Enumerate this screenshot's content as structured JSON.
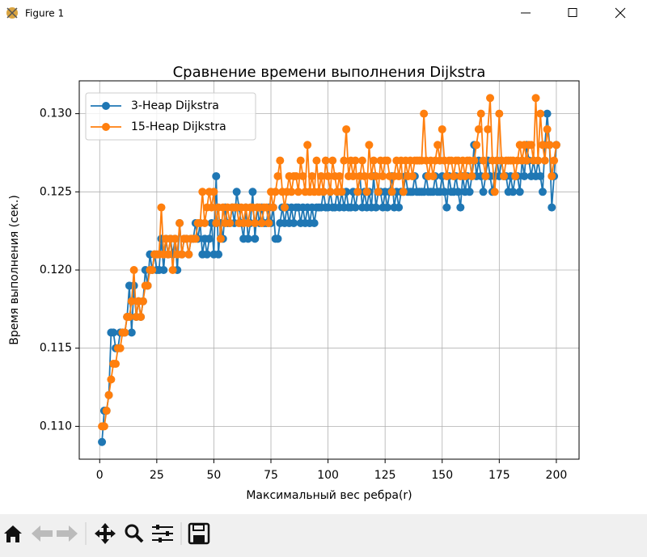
{
  "window": {
    "title": "Figure 1"
  },
  "chart_data": {
    "type": "line",
    "title": "Сравнение времени выполнения Dijkstra",
    "xlabel": "Максимальный вес ребра(r)",
    "ylabel": "Время выполнения (сек.)",
    "x": [
      1,
      2,
      3,
      4,
      5,
      6,
      7,
      8,
      9,
      10,
      11,
      12,
      13,
      14,
      15,
      16,
      17,
      18,
      19,
      20,
      21,
      22,
      23,
      24,
      25,
      26,
      27,
      28,
      29,
      30,
      31,
      32,
      33,
      34,
      35,
      36,
      37,
      38,
      39,
      40,
      41,
      42,
      43,
      44,
      45,
      46,
      47,
      48,
      49,
      50,
      51,
      52,
      53,
      54,
      55,
      56,
      57,
      58,
      59,
      60,
      61,
      62,
      63,
      64,
      65,
      66,
      67,
      68,
      69,
      70,
      71,
      72,
      73,
      74,
      75,
      76,
      77,
      78,
      79,
      80,
      81,
      82,
      83,
      84,
      85,
      86,
      87,
      88,
      89,
      90,
      91,
      92,
      93,
      94,
      95,
      96,
      97,
      98,
      99,
      100,
      101,
      102,
      103,
      104,
      105,
      106,
      107,
      108,
      109,
      110,
      111,
      112,
      113,
      114,
      115,
      116,
      117,
      118,
      119,
      120,
      121,
      122,
      123,
      124,
      125,
      126,
      127,
      128,
      129,
      130,
      131,
      132,
      133,
      134,
      135,
      136,
      137,
      138,
      139,
      140,
      141,
      142,
      143,
      144,
      145,
      146,
      147,
      148,
      149,
      150,
      151,
      152,
      153,
      154,
      155,
      156,
      157,
      158,
      159,
      160,
      161,
      162,
      163,
      164,
      165,
      166,
      167,
      168,
      169,
      170,
      171,
      172,
      173,
      174,
      175,
      176,
      177,
      178,
      179,
      180,
      181,
      182,
      183,
      184,
      185,
      186,
      187,
      188,
      189,
      190,
      191,
      192,
      193,
      194,
      195,
      196,
      197,
      198,
      199,
      200
    ],
    "series": [
      {
        "name": "3-Heap Dijkstra",
        "color": "#1f77b4",
        "values": [
          0.109,
          0.111,
          0.111,
          0.112,
          0.116,
          0.116,
          0.115,
          0.115,
          0.116,
          0.116,
          0.116,
          0.117,
          0.119,
          0.116,
          0.119,
          0.117,
          0.118,
          0.117,
          0.118,
          0.12,
          0.119,
          0.121,
          0.12,
          0.121,
          0.12,
          0.12,
          0.122,
          0.12,
          0.122,
          0.121,
          0.122,
          0.121,
          0.122,
          0.12,
          0.123,
          0.121,
          0.122,
          0.122,
          0.121,
          0.122,
          0.122,
          0.123,
          0.122,
          0.123,
          0.121,
          0.122,
          0.121,
          0.122,
          0.123,
          0.121,
          0.126,
          0.121,
          0.123,
          0.122,
          0.124,
          0.123,
          0.123,
          0.124,
          0.123,
          0.125,
          0.124,
          0.123,
          0.122,
          0.124,
          0.122,
          0.123,
          0.125,
          0.122,
          0.124,
          0.123,
          0.124,
          0.123,
          0.123,
          0.124,
          0.123,
          0.124,
          0.122,
          0.122,
          0.123,
          0.124,
          0.123,
          0.124,
          0.123,
          0.124,
          0.123,
          0.124,
          0.124,
          0.123,
          0.124,
          0.123,
          0.124,
          0.123,
          0.124,
          0.123,
          0.124,
          0.124,
          0.124,
          0.125,
          0.124,
          0.124,
          0.125,
          0.124,
          0.124,
          0.125,
          0.124,
          0.125,
          0.124,
          0.125,
          0.124,
          0.124,
          0.125,
          0.124,
          0.125,
          0.126,
          0.124,
          0.125,
          0.124,
          0.125,
          0.124,
          0.126,
          0.124,
          0.125,
          0.125,
          0.124,
          0.125,
          0.124,
          0.125,
          0.126,
          0.124,
          0.125,
          0.124,
          0.125,
          0.125,
          0.126,
          0.125,
          0.125,
          0.125,
          0.126,
          0.125,
          0.125,
          0.125,
          0.125,
          0.126,
          0.125,
          0.125,
          0.125,
          0.126,
          0.125,
          0.125,
          0.126,
          0.125,
          0.124,
          0.126,
          0.125,
          0.125,
          0.126,
          0.125,
          0.124,
          0.126,
          0.125,
          0.126,
          0.125,
          0.126,
          0.128,
          0.126,
          0.127,
          0.126,
          0.125,
          0.126,
          0.127,
          0.126,
          0.125,
          0.126,
          0.127,
          0.126,
          0.127,
          0.126,
          0.126,
          0.125,
          0.126,
          0.125,
          0.126,
          0.126,
          0.125,
          0.127,
          0.126,
          0.128,
          0.127,
          0.126,
          0.127,
          0.126,
          0.127,
          0.126,
          0.125,
          0.128,
          0.13,
          0.128,
          0.124,
          0.126,
          0.128
        ]
      },
      {
        "name": "15-Heap Dijkstra",
        "color": "#ff7f0e",
        "values": [
          0.11,
          0.11,
          0.111,
          0.112,
          0.113,
          0.114,
          0.114,
          0.115,
          0.115,
          0.116,
          0.116,
          0.117,
          0.117,
          0.118,
          0.12,
          0.117,
          0.118,
          0.117,
          0.118,
          0.119,
          0.119,
          0.12,
          0.12,
          0.121,
          0.121,
          0.121,
          0.124,
          0.121,
          0.122,
          0.121,
          0.122,
          0.12,
          0.122,
          0.121,
          0.123,
          0.121,
          0.122,
          0.122,
          0.121,
          0.122,
          0.122,
          0.122,
          0.123,
          0.123,
          0.125,
          0.123,
          0.124,
          0.125,
          0.124,
          0.125,
          0.123,
          0.124,
          0.122,
          0.124,
          0.123,
          0.124,
          0.123,
          0.124,
          0.124,
          0.124,
          0.123,
          0.124,
          0.123,
          0.124,
          0.123,
          0.124,
          0.124,
          0.123,
          0.124,
          0.124,
          0.123,
          0.124,
          0.124,
          0.123,
          0.125,
          0.124,
          0.125,
          0.126,
          0.127,
          0.125,
          0.124,
          0.125,
          0.126,
          0.125,
          0.126,
          0.126,
          0.125,
          0.127,
          0.126,
          0.125,
          0.128,
          0.125,
          0.126,
          0.125,
          0.127,
          0.125,
          0.126,
          0.125,
          0.127,
          0.126,
          0.125,
          0.127,
          0.126,
          0.125,
          0.126,
          0.125,
          0.127,
          0.129,
          0.126,
          0.127,
          0.126,
          0.127,
          0.125,
          0.126,
          0.127,
          0.126,
          0.125,
          0.128,
          0.126,
          0.127,
          0.126,
          0.125,
          0.127,
          0.126,
          0.127,
          0.127,
          0.126,
          0.125,
          0.126,
          0.127,
          0.126,
          0.127,
          0.125,
          0.127,
          0.126,
          0.127,
          0.126,
          0.127,
          0.127,
          0.127,
          0.127,
          0.13,
          0.127,
          0.126,
          0.127,
          0.126,
          0.127,
          0.128,
          0.127,
          0.129,
          0.127,
          0.126,
          0.127,
          0.127,
          0.126,
          0.127,
          0.127,
          0.126,
          0.127,
          0.126,
          0.127,
          0.127,
          0.126,
          0.127,
          0.128,
          0.129,
          0.13,
          0.127,
          0.126,
          0.129,
          0.131,
          0.127,
          0.125,
          0.127,
          0.13,
          0.127,
          0.126,
          0.127,
          0.127,
          0.127,
          0.127,
          0.126,
          0.127,
          0.128,
          0.127,
          0.128,
          0.127,
          0.128,
          0.128,
          0.127,
          0.131,
          0.127,
          0.13,
          0.128,
          0.127,
          0.129,
          0.128,
          0.126,
          0.127,
          0.128
        ]
      }
    ],
    "xlim": [
      -8.95,
      209.95
    ],
    "ylim": [
      0.1079,
      0.1321
    ],
    "xticks": [
      0,
      25,
      50,
      75,
      100,
      125,
      150,
      175,
      200
    ],
    "yticks": [
      {
        "value": 0.11,
        "label": "0.110"
      },
      0.115,
      {
        "value": 0.12,
        "label": "0.120"
      },
      0.125,
      {
        "value": 0.13,
        "label": "0.130"
      }
    ],
    "grid": true,
    "legend": "upper left"
  }
}
